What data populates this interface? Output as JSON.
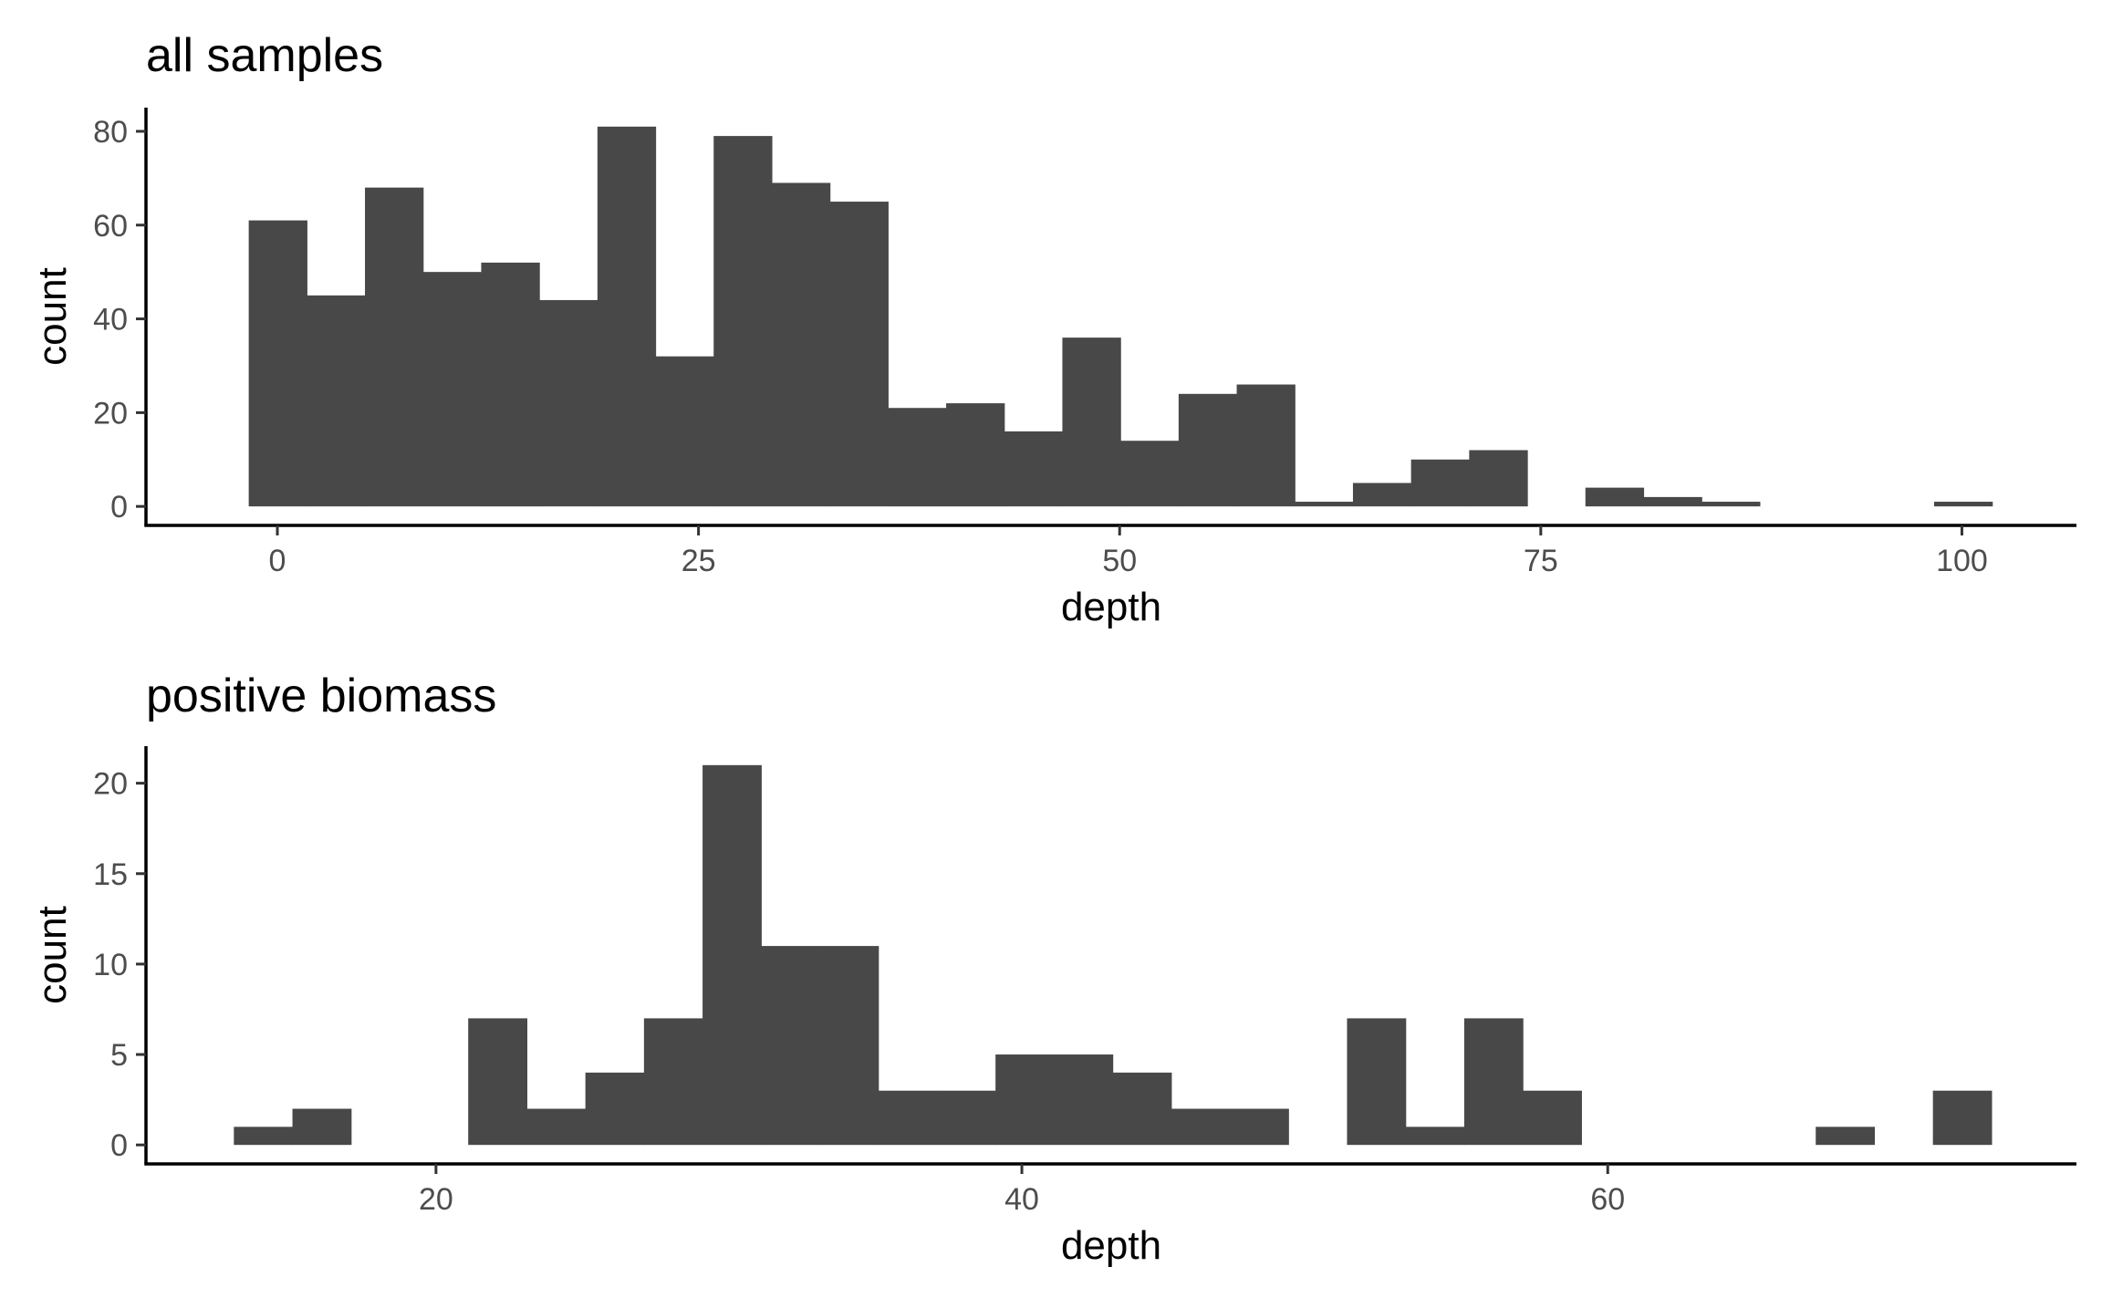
{
  "chart_data": [
    {
      "type": "bar",
      "title": "all samples",
      "xlabel": "depth",
      "ylabel": "count",
      "xlim": [
        -7.8,
        106.8
      ],
      "ylim": [
        -4.05,
        85.05
      ],
      "xticks": [
        0,
        25,
        50,
        75,
        100
      ],
      "yticks": [
        0,
        20,
        40,
        60,
        80
      ],
      "grid": false,
      "bar_color": "#484848",
      "bins": [
        {
          "x0": -1.7,
          "x1": 1.75,
          "count": 61
        },
        {
          "x0": 1.75,
          "x1": 5.2,
          "count": 45
        },
        {
          "x0": 5.2,
          "x1": 8.65,
          "count": 68
        },
        {
          "x0": 8.65,
          "x1": 12.1,
          "count": 50
        },
        {
          "x0": 12.1,
          "x1": 15.55,
          "count": 52
        },
        {
          "x0": 15.55,
          "x1": 19.0,
          "count": 44
        },
        {
          "x0": 19.0,
          "x1": 22.45,
          "count": 81
        },
        {
          "x0": 22.45,
          "x1": 25.9,
          "count": 32
        },
        {
          "x0": 25.9,
          "x1": 29.35,
          "count": 79
        },
        {
          "x0": 29.35,
          "x1": 32.8,
          "count": 69
        },
        {
          "x0": 32.8,
          "x1": 36.25,
          "count": 65
        },
        {
          "x0": 36.25,
          "x1": 39.7,
          "count": 21
        },
        {
          "x0": 39.7,
          "x1": 43.15,
          "count": 22
        },
        {
          "x0": 43.15,
          "x1": 46.6,
          "count": 16
        },
        {
          "x0": 46.6,
          "x1": 50.05,
          "count": 36
        },
        {
          "x0": 50.05,
          "x1": 53.5,
          "count": 14
        },
        {
          "x0": 53.5,
          "x1": 56.95,
          "count": 24
        },
        {
          "x0": 56.95,
          "x1": 60.4,
          "count": 26
        },
        {
          "x0": 60.4,
          "x1": 63.85,
          "count": 1
        },
        {
          "x0": 63.85,
          "x1": 67.3,
          "count": 5
        },
        {
          "x0": 67.3,
          "x1": 70.75,
          "count": 10
        },
        {
          "x0": 70.75,
          "x1": 74.2,
          "count": 12
        },
        {
          "x0": 74.2,
          "x1": 77.65,
          "count": 0
        },
        {
          "x0": 77.65,
          "x1": 81.1,
          "count": 4
        },
        {
          "x0": 81.1,
          "x1": 84.55,
          "count": 2
        },
        {
          "x0": 84.55,
          "x1": 88.0,
          "count": 1
        },
        {
          "x0": 88.0,
          "x1": 91.45,
          "count": 0
        },
        {
          "x0": 91.45,
          "x1": 94.9,
          "count": 0
        },
        {
          "x0": 94.9,
          "x1": 98.35,
          "count": 0
        },
        {
          "x0": 98.35,
          "x1": 101.8,
          "count": 1
        }
      ]
    },
    {
      "type": "bar",
      "title": "positive biomass",
      "xlabel": "depth",
      "ylabel": "count",
      "xlim": [
        10.1,
        76.0
      ],
      "ylim": [
        -1.05,
        22.05
      ],
      "xticks": [
        20,
        40,
        60
      ],
      "yticks": [
        0,
        5,
        10,
        15,
        20
      ],
      "grid": false,
      "bar_color": "#484848",
      "bins": [
        {
          "x0": 13.1,
          "x1": 15.1,
          "count": 1
        },
        {
          "x0": 15.1,
          "x1": 17.1,
          "count": 2
        },
        {
          "x0": 17.1,
          "x1": 19.1,
          "count": 0
        },
        {
          "x0": 19.1,
          "x1": 21.1,
          "count": 0
        },
        {
          "x0": 21.1,
          "x1": 23.1,
          "count": 7
        },
        {
          "x0": 23.1,
          "x1": 25.1,
          "count": 2
        },
        {
          "x0": 25.1,
          "x1": 27.1,
          "count": 4
        },
        {
          "x0": 27.1,
          "x1": 29.1,
          "count": 7
        },
        {
          "x0": 29.1,
          "x1": 31.1,
          "count": 21
        },
        {
          "x0": 31.1,
          "x1": 33.1,
          "count": 11
        },
        {
          "x0": 33.1,
          "x1": 35.1,
          "count": 11
        },
        {
          "x0": 35.1,
          "x1": 37.1,
          "count": 3
        },
        {
          "x0": 37.1,
          "x1": 39.1,
          "count": 3
        },
        {
          "x0": 39.1,
          "x1": 41.1,
          "count": 5
        },
        {
          "x0": 41.1,
          "x1": 43.1,
          "count": 5
        },
        {
          "x0": 43.1,
          "x1": 45.1,
          "count": 4
        },
        {
          "x0": 45.1,
          "x1": 47.1,
          "count": 2
        },
        {
          "x0": 47.1,
          "x1": 49.1,
          "count": 2
        },
        {
          "x0": 49.1,
          "x1": 51.1,
          "count": 0
        },
        {
          "x0": 51.1,
          "x1": 53.1,
          "count": 7
        },
        {
          "x0": 53.1,
          "x1": 55.1,
          "count": 1
        },
        {
          "x0": 55.1,
          "x1": 57.1,
          "count": 7
        },
        {
          "x0": 57.1,
          "x1": 59.1,
          "count": 3
        },
        {
          "x0": 59.1,
          "x1": 61.1,
          "count": 0
        },
        {
          "x0": 61.1,
          "x1": 63.1,
          "count": 0
        },
        {
          "x0": 63.1,
          "x1": 65.1,
          "count": 0
        },
        {
          "x0": 65.1,
          "x1": 67.1,
          "count": 0
        },
        {
          "x0": 67.1,
          "x1": 69.1,
          "count": 1
        },
        {
          "x0": 69.1,
          "x1": 71.1,
          "count": 0
        },
        {
          "x0": 71.1,
          "x1": 73.1,
          "count": 3
        }
      ]
    }
  ]
}
